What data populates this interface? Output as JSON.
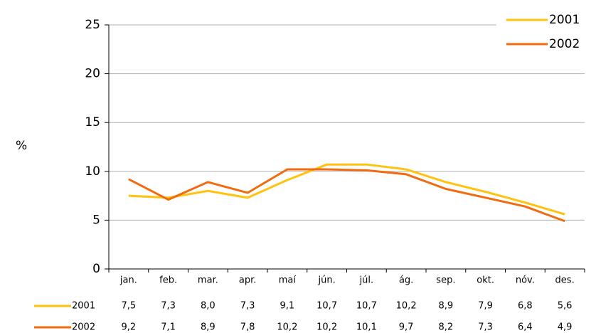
{
  "chart_data": {
    "type": "line",
    "y_label": "%",
    "categories": [
      "jan.",
      "feb.",
      "mar.",
      "apr.",
      "maí",
      "jún.",
      "júl.",
      "ág.",
      "sep.",
      "okt.",
      "nóv.",
      "des."
    ],
    "series": [
      {
        "name": "2001",
        "color": "#ffc20e",
        "values": [
          7.5,
          7.3,
          8.0,
          7.3,
          9.1,
          10.7,
          10.7,
          10.2,
          8.9,
          7.9,
          6.8,
          5.6
        ],
        "value_labels": [
          "7,5",
          "7,3",
          "8,0",
          "7,3",
          "9,1",
          "10,7",
          "10,7",
          "10,2",
          "8,9",
          "7,9",
          "6,8",
          "5,6"
        ]
      },
      {
        "name": "2002",
        "color": "#f26b10",
        "values": [
          9.2,
          7.1,
          8.9,
          7.8,
          10.2,
          10.2,
          10.1,
          9.7,
          8.2,
          7.3,
          6.4,
          4.9
        ],
        "value_labels": [
          "9,2",
          "7,1",
          "8,9",
          "7,8",
          "10,2",
          "10,2",
          "10,1",
          "9,7",
          "8,2",
          "7,3",
          "6,4",
          "4,9"
        ]
      }
    ],
    "ylim": [
      0,
      25
    ],
    "yticks": [
      0,
      5,
      10,
      15,
      20,
      25
    ],
    "grid": true,
    "legend": "top-right"
  }
}
